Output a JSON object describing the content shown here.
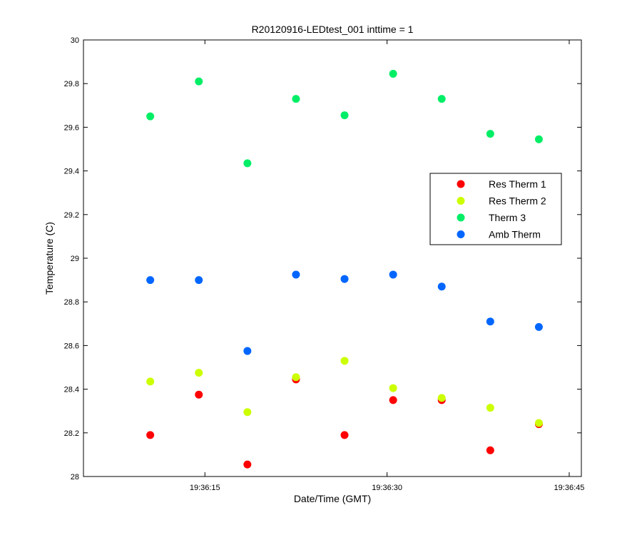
{
  "chart_data": {
    "type": "scatter",
    "title": "R20120916-LEDtest_001 inttime = 1",
    "xlabel": "Date/Time (GMT)",
    "ylabel": "Temperature (C)",
    "x_unit": "time of day (GMT)",
    "xlim": [
      "19:36:05",
      "19:36:46"
    ],
    "ylim": [
      28,
      30
    ],
    "xticks": [
      "19:36:15",
      "19:36:30",
      "19:36:45"
    ],
    "yticks": [
      "28",
      "28.2",
      "28.4",
      "28.6",
      "28.8",
      "29",
      "29.2",
      "29.4",
      "29.6",
      "29.8",
      "30"
    ],
    "grid": false,
    "legend_position": "right",
    "x": [
      "19:36:10.5",
      "19:36:14.5",
      "19:36:18.5",
      "19:36:22.5",
      "19:36:26.5",
      "19:36:30.5",
      "19:36:34.5",
      "19:36:38.5",
      "19:36:42.5"
    ],
    "series": [
      {
        "name": "Res Therm 1",
        "color": "#ff0000",
        "values": [
          28.19,
          28.375,
          28.055,
          28.445,
          28.19,
          28.35,
          28.35,
          28.12,
          28.24
        ]
      },
      {
        "name": "Res Therm 2",
        "color": "#ccff00",
        "values": [
          28.435,
          28.475,
          28.295,
          28.455,
          28.53,
          28.405,
          28.36,
          28.315,
          28.245
        ]
      },
      {
        "name": "Therm 3",
        "color": "#00ee66",
        "values": [
          29.65,
          29.81,
          29.435,
          29.73,
          29.655,
          29.845,
          29.73,
          29.57,
          29.545
        ]
      },
      {
        "name": "Amb Therm",
        "color": "#0066ff",
        "values": [
          28.9,
          28.9,
          28.575,
          28.925,
          28.905,
          28.925,
          28.87,
          28.71,
          28.685
        ]
      }
    ]
  }
}
